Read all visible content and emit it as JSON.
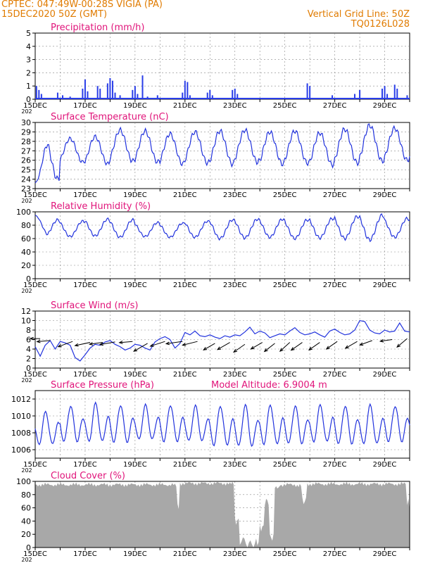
{
  "header": {
    "line1_left": "CPTEC:   047:49W-00:28S   VIGIA (PA)",
    "line2_left": "15DEC2020 50Z (GMT)",
    "line1_right": "Vertical Grid Line: 50Z",
    "line2_right": "TQ0126L028",
    "model_altitude": "Model Altitude: 6.9004 m"
  },
  "colors": {
    "header": "#e07b00",
    "title": "#e0147a",
    "line": "#2233dd",
    "bar": "#2a3ee8",
    "cloud": "#a8a8a8",
    "arrow": "#000000"
  },
  "x_tick_labels": [
    "15DEC",
    "17DEC",
    "19DEC",
    "21DEC",
    "23DEC",
    "25DEC",
    "27DEC",
    "29DEC"
  ],
  "x_stub_label": "202",
  "chart_data": [
    {
      "id": "precip",
      "type": "bar",
      "title": "Precipitation (mm/h)",
      "ylim": [
        0,
        5
      ],
      "yticks": [
        0,
        1,
        2,
        3,
        4,
        5
      ],
      "day_start": 15,
      "days": 15,
      "events": [
        [
          15.05,
          1.0
        ],
        [
          15.15,
          0.7
        ],
        [
          15.25,
          0.4
        ],
        [
          15.9,
          0.5
        ],
        [
          16.1,
          0.3
        ],
        [
          16.4,
          0.2
        ],
        [
          16.9,
          0.8
        ],
        [
          17.0,
          1.5
        ],
        [
          17.1,
          0.6
        ],
        [
          17.5,
          1.0
        ],
        [
          17.6,
          0.8
        ],
        [
          17.9,
          1.2
        ],
        [
          18.0,
          1.6
        ],
        [
          18.1,
          1.4
        ],
        [
          18.2,
          0.5
        ],
        [
          18.4,
          0.3
        ],
        [
          18.9,
          0.7
        ],
        [
          19.0,
          1.0
        ],
        [
          19.1,
          0.4
        ],
        [
          19.3,
          1.8
        ],
        [
          19.5,
          0.2
        ],
        [
          19.9,
          0.3
        ],
        [
          20.9,
          0.5
        ],
        [
          21.0,
          1.4
        ],
        [
          21.1,
          1.3
        ],
        [
          21.2,
          0.3
        ],
        [
          21.9,
          0.5
        ],
        [
          22.0,
          0.7
        ],
        [
          22.1,
          0.3
        ],
        [
          22.9,
          0.7
        ],
        [
          23.0,
          0.8
        ],
        [
          23.1,
          0.4
        ],
        [
          25.0,
          0.1
        ],
        [
          25.9,
          1.2
        ],
        [
          26.0,
          1.0
        ],
        [
          26.9,
          0.3
        ],
        [
          27.8,
          0.4
        ],
        [
          28.0,
          0.7
        ],
        [
          28.9,
          0.8
        ],
        [
          29.0,
          1.0
        ],
        [
          29.1,
          0.4
        ],
        [
          29.4,
          1.1
        ],
        [
          29.5,
          0.8
        ],
        [
          29.9,
          0.3
        ]
      ]
    },
    {
      "id": "temp",
      "type": "line",
      "title": "Surface Temperature (nC)",
      "ylim": [
        23,
        30
      ],
      "yticks": [
        23,
        24,
        25,
        26,
        27,
        28,
        29,
        30
      ],
      "day_start": 15,
      "days": 15,
      "daily_max": [
        28.1,
        28.3,
        28.5,
        29.2,
        29.1,
        28.8,
        29.0,
        29.1,
        29.2,
        29.0,
        29.1,
        28.9,
        29.3,
        29.7,
        29.4
      ],
      "daily_min": [
        24.0,
        25.8,
        25.6,
        25.9,
        25.8,
        25.6,
        25.7,
        25.6,
        25.8,
        25.6,
        25.7,
        25.5,
        25.7,
        25.9,
        26.0
      ],
      "start_value": 23.6
    },
    {
      "id": "rh",
      "type": "line",
      "title": "Relative Humidity (%)",
      "ylim": [
        0,
        100
      ],
      "yticks": [
        0,
        20,
        40,
        60,
        80,
        100
      ],
      "day_start": 15,
      "days": 15,
      "daily_max": [
        88,
        86,
        89,
        88,
        84,
        83,
        86,
        88,
        89,
        89,
        88,
        90,
        93,
        95,
        90
      ],
      "daily_min": [
        64,
        63,
        64,
        62,
        63,
        62,
        62,
        60,
        61,
        62,
        60,
        61,
        60,
        58,
        62
      ],
      "start_value": 95
    },
    {
      "id": "wind",
      "type": "line",
      "title": "Surface Wind (m/s)",
      "ylim": [
        0,
        12
      ],
      "yticks": [
        0,
        2,
        4,
        6,
        8,
        10,
        12
      ],
      "day_start": 15,
      "days": 15,
      "points": [
        [
          15.0,
          4.5
        ],
        [
          15.2,
          2.5
        ],
        [
          15.4,
          4.8
        ],
        [
          15.6,
          5.8
        ],
        [
          15.8,
          4.0
        ],
        [
          16.0,
          5.6
        ],
        [
          16.2,
          5.3
        ],
        [
          16.4,
          4.8
        ],
        [
          16.6,
          2.2
        ],
        [
          16.8,
          1.5
        ],
        [
          17.0,
          2.8
        ],
        [
          17.2,
          4.2
        ],
        [
          17.4,
          5.0
        ],
        [
          17.6,
          4.8
        ],
        [
          17.8,
          5.5
        ],
        [
          18.0,
          5.8
        ],
        [
          18.2,
          5.0
        ],
        [
          18.4,
          4.5
        ],
        [
          18.6,
          3.8
        ],
        [
          18.8,
          4.2
        ],
        [
          19.0,
          5.0
        ],
        [
          19.2,
          4.8
        ],
        [
          19.4,
          4.2
        ],
        [
          19.6,
          3.8
        ],
        [
          19.8,
          5.5
        ],
        [
          20.0,
          6.2
        ],
        [
          20.2,
          6.6
        ],
        [
          20.4,
          6.0
        ],
        [
          20.6,
          4.2
        ],
        [
          20.8,
          5.2
        ],
        [
          21.0,
          7.5
        ],
        [
          21.2,
          7.0
        ],
        [
          21.4,
          7.8
        ],
        [
          21.6,
          6.8
        ],
        [
          21.8,
          6.6
        ],
        [
          22.0,
          7.0
        ],
        [
          22.2,
          6.5
        ],
        [
          22.4,
          6.2
        ],
        [
          22.6,
          6.8
        ],
        [
          22.8,
          6.5
        ],
        [
          23.0,
          7.0
        ],
        [
          23.2,
          6.8
        ],
        [
          23.4,
          7.6
        ],
        [
          23.6,
          8.6
        ],
        [
          23.8,
          7.2
        ],
        [
          24.0,
          7.8
        ],
        [
          24.2,
          7.4
        ],
        [
          24.4,
          6.4
        ],
        [
          24.6,
          6.8
        ],
        [
          24.8,
          7.2
        ],
        [
          25.0,
          7.0
        ],
        [
          25.2,
          7.8
        ],
        [
          25.4,
          8.5
        ],
        [
          25.6,
          7.5
        ],
        [
          25.8,
          7.0
        ],
        [
          26.0,
          7.2
        ],
        [
          26.2,
          7.6
        ],
        [
          26.4,
          7.0
        ],
        [
          26.6,
          6.5
        ],
        [
          26.8,
          7.8
        ],
        [
          27.0,
          8.2
        ],
        [
          27.2,
          7.5
        ],
        [
          27.4,
          7.0
        ],
        [
          27.6,
          7.2
        ],
        [
          27.8,
          8.0
        ],
        [
          28.0,
          10.0
        ],
        [
          28.2,
          9.8
        ],
        [
          28.4,
          8.0
        ],
        [
          28.6,
          7.4
        ],
        [
          28.8,
          7.2
        ],
        [
          29.0,
          8.0
        ],
        [
          29.2,
          7.6
        ],
        [
          29.4,
          7.8
        ],
        [
          29.6,
          9.5
        ],
        [
          29.8,
          7.8
        ],
        [
          30.0,
          7.6
        ]
      ],
      "arrows": [
        [
          15.2,
          6.2,
          45,
          0
        ],
        [
          15.6,
          5.8,
          60,
          5
        ],
        [
          16.5,
          5.6,
          70,
          20
        ],
        [
          17.2,
          5.4,
          70,
          12
        ],
        [
          17.7,
          5.4,
          60,
          8
        ],
        [
          18.2,
          5.5,
          70,
          10
        ],
        [
          18.9,
          5.6,
          60,
          5
        ],
        [
          19.5,
          5.2,
          72,
          30
        ],
        [
          20.2,
          5.6,
          70,
          18
        ],
        [
          20.9,
          5.6,
          75,
          8
        ],
        [
          21.5,
          5.6,
          70,
          14
        ],
        [
          22.2,
          5.2,
          60,
          30
        ],
        [
          22.8,
          5.4,
          65,
          30
        ],
        [
          23.4,
          5.0,
          62,
          35
        ],
        [
          24.1,
          5.4,
          60,
          30
        ],
        [
          24.6,
          5.2,
          60,
          38
        ],
        [
          25.2,
          5.4,
          60,
          42
        ],
        [
          25.7,
          5.4,
          62,
          35
        ],
        [
          26.4,
          5.4,
          60,
          35
        ],
        [
          27.1,
          5.6,
          60,
          35
        ],
        [
          27.9,
          5.6,
          62,
          30
        ],
        [
          28.5,
          5.8,
          60,
          20
        ],
        [
          29.3,
          6.0,
          55,
          8
        ],
        [
          29.9,
          6.2,
          60,
          40
        ]
      ]
    },
    {
      "id": "pressure",
      "type": "line",
      "title": "Surface Pressure (hPa)",
      "ylim": [
        1005,
        1013
      ],
      "yticks": [
        1006,
        1008,
        1010,
        1012
      ],
      "day_start": 15,
      "days": 15,
      "semidiurnal_high": [
        1010.5,
        1011.2,
        1011.5,
        1011.3,
        1011.3,
        1011.3,
        1011.2,
        1011.2,
        1011.3,
        1011.3,
        1011.2,
        1011.3,
        1011.2,
        1011.3,
        1011.2
      ],
      "semidiurnal_low": [
        1006.0,
        1006.3,
        1006.2,
        1006.2,
        1006.5,
        1006.3,
        1006.3,
        1005.8,
        1005.6,
        1005.9,
        1006.0,
        1006.2,
        1006.0,
        1005.9,
        1006.3
      ]
    },
    {
      "id": "cloud",
      "type": "area",
      "title": "Cloud Cover (%)",
      "ylim": [
        0,
        100
      ],
      "yticks": [
        0,
        20,
        40,
        60,
        80,
        100
      ],
      "day_start": 15,
      "days": 15,
      "segments": [
        [
          15.0,
          95
        ],
        [
          20.6,
          93
        ],
        [
          20.7,
          60
        ],
        [
          20.8,
          97
        ],
        [
          22.8,
          96
        ],
        [
          23.0,
          40
        ],
        [
          23.2,
          10
        ],
        [
          23.5,
          5
        ],
        [
          23.8,
          8
        ],
        [
          24.0,
          30
        ],
        [
          24.2,
          70
        ],
        [
          24.4,
          15
        ],
        [
          24.6,
          90
        ],
        [
          24.8,
          95
        ],
        [
          25.5,
          94
        ],
        [
          25.7,
          70
        ],
        [
          25.9,
          96
        ],
        [
          29.5,
          96
        ],
        [
          29.9,
          70
        ],
        [
          30.0,
          55
        ]
      ]
    }
  ]
}
